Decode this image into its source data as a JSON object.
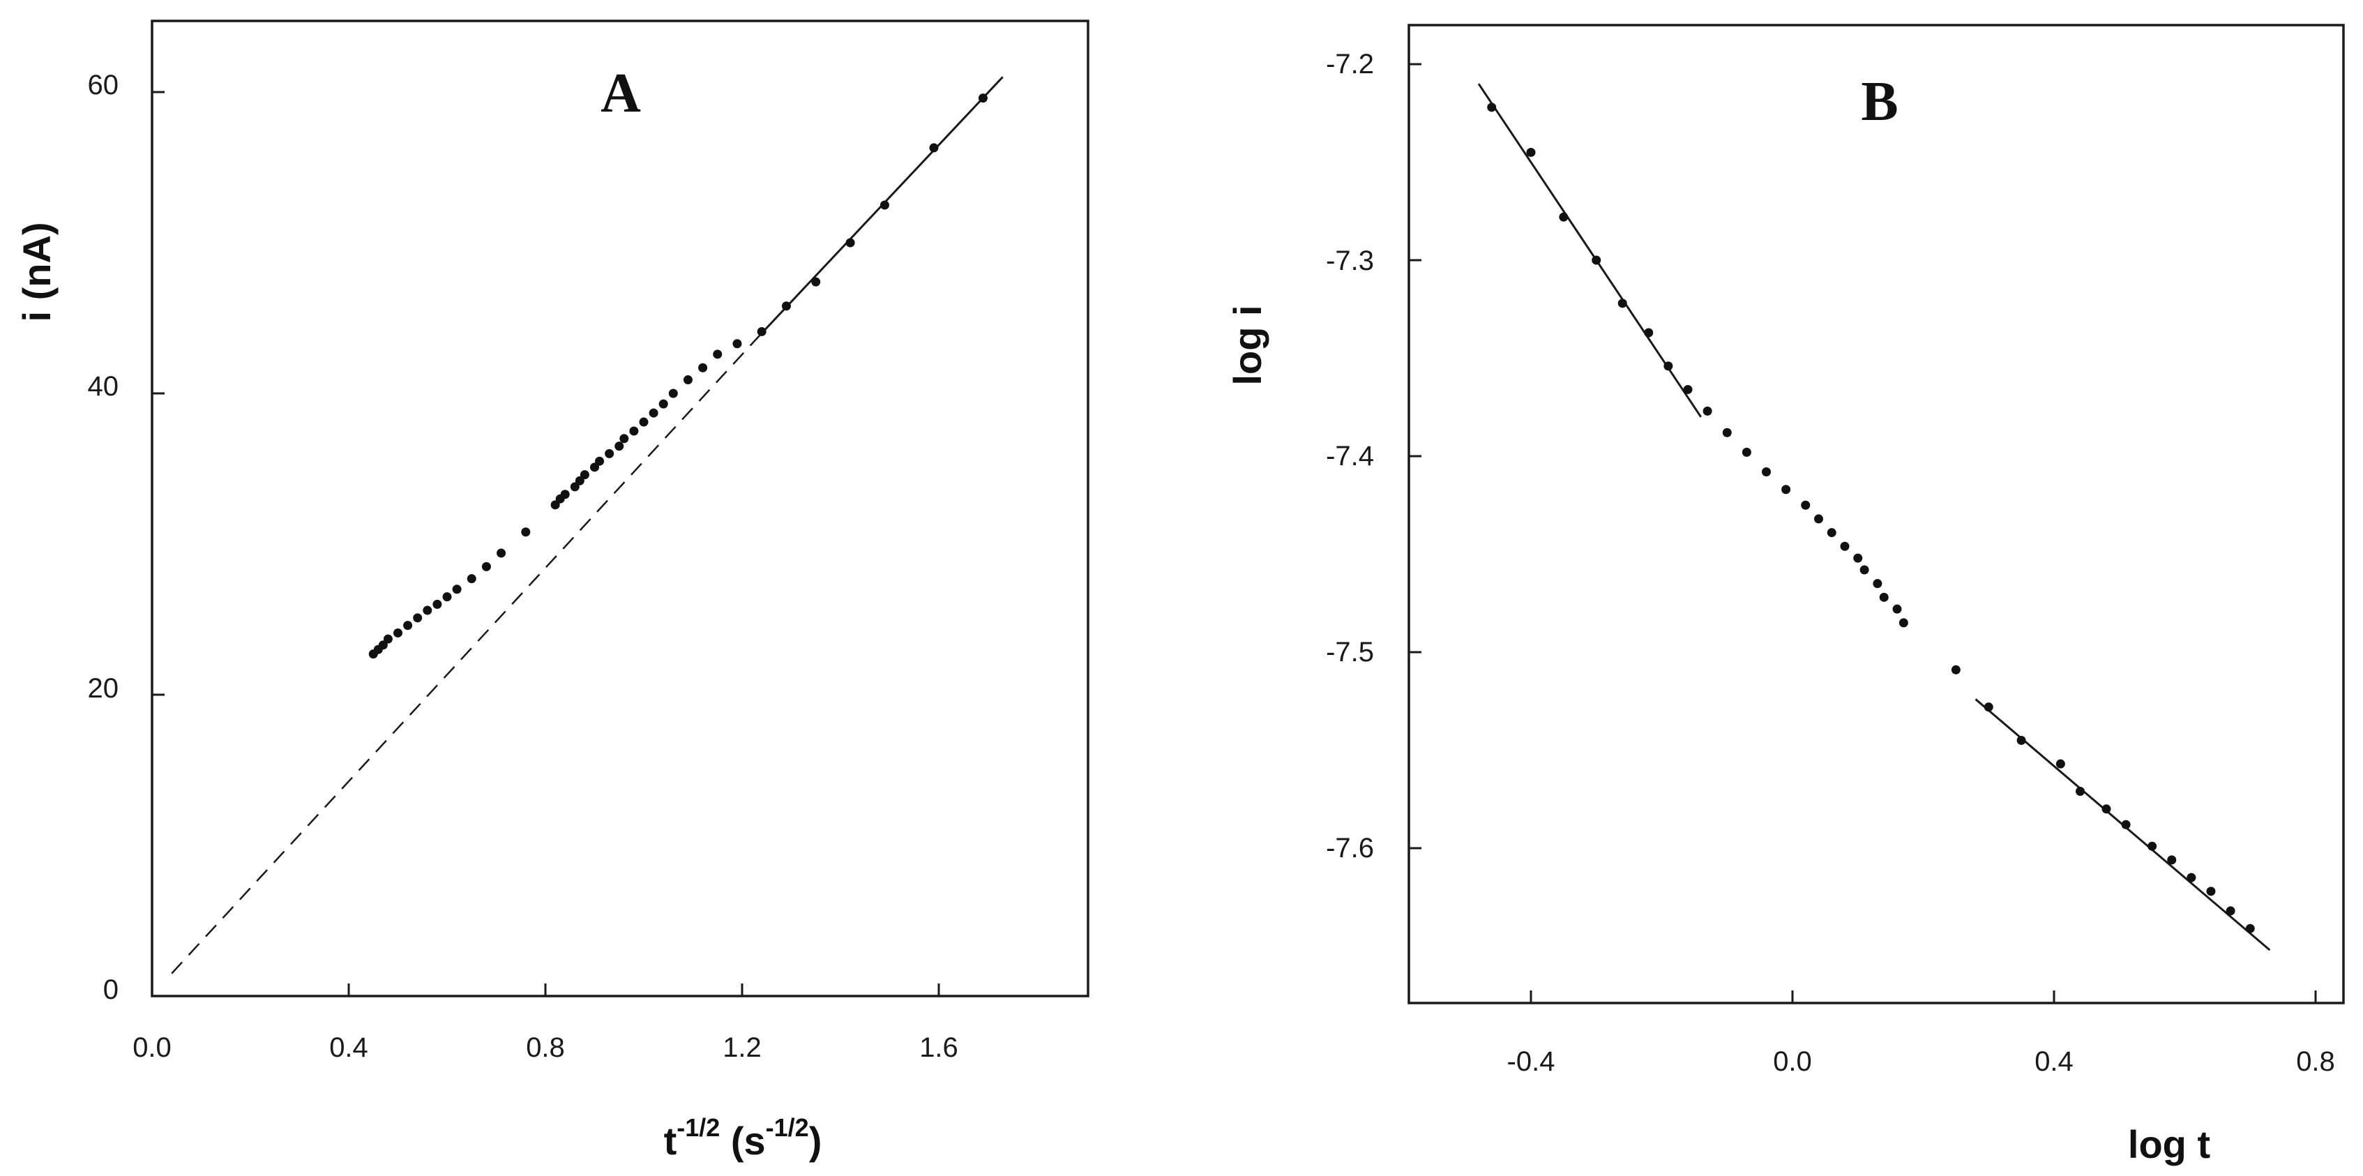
{
  "chart_data": [
    {
      "type": "scatter",
      "panel_label": "A",
      "xlabel": {
        "base": "t",
        "base_sup": "-1/2",
        "unit_open": " (s",
        "unit_sup": "-1/2",
        "unit_close": ")"
      },
      "ylabel": "i (nA)",
      "xlim": [
        0.0,
        1.9
      ],
      "ylim": [
        0,
        60
      ],
      "x_ticks": [
        0.0,
        0.4,
        0.8,
        1.2,
        1.6
      ],
      "x_tick_labels": [
        "0.0",
        "0.4",
        "0.8",
        "1.2",
        "1.6"
      ],
      "y_ticks": [
        0,
        20,
        40,
        60
      ],
      "y_tick_labels": [
        "0",
        "20",
        "40",
        "60"
      ],
      "grid": false,
      "series": [
        {
          "x": [
            0.45,
            0.46,
            0.47,
            0.48,
            0.5,
            0.52,
            0.54,
            0.56,
            0.58,
            0.6,
            0.62,
            0.65,
            0.68,
            0.71,
            0.76,
            0.82,
            0.83,
            0.84,
            0.86,
            0.87,
            0.88,
            0.9,
            0.91,
            0.93,
            0.95,
            0.96,
            0.98,
            1.0,
            1.02,
            1.04,
            1.06,
            1.09,
            1.12,
            1.15,
            1.19,
            1.24,
            1.29,
            1.35,
            1.42,
            1.49,
            1.59,
            1.69
          ],
          "y": [
            22.7,
            23.0,
            23.3,
            23.7,
            24.1,
            24.6,
            25.1,
            25.6,
            26.0,
            26.5,
            27.0,
            27.7,
            28.5,
            29.4,
            30.8,
            32.6,
            33.0,
            33.3,
            33.8,
            34.2,
            34.6,
            35.1,
            35.5,
            36.0,
            36.5,
            37.0,
            37.5,
            38.1,
            38.7,
            39.3,
            40.0,
            40.9,
            41.7,
            42.6,
            43.3,
            44.1,
            45.8,
            47.4,
            50.0,
            52.5,
            56.3,
            59.6
          ]
        }
      ],
      "lines": [
        {
          "style": "solid",
          "x": [
            1.24,
            1.73
          ],
          "y": [
            44.0,
            61.0
          ]
        },
        {
          "style": "dashed",
          "x": [
            0.04,
            1.24
          ],
          "y": [
            1.5,
            44.0
          ]
        }
      ]
    },
    {
      "type": "scatter",
      "panel_label": "B",
      "xlabel": "log t",
      "ylabel": "log i",
      "xlim": [
        -0.6,
        0.82
      ],
      "ylim": [
        -7.68,
        -7.18
      ],
      "x_ticks": [
        -0.4,
        0.0,
        0.4,
        0.8
      ],
      "x_tick_labels": [
        "-0.4",
        "0.0",
        "0.4",
        "0.8"
      ],
      "y_ticks": [
        -7.2,
        -7.3,
        -7.4,
        -7.5,
        -7.6
      ],
      "y_tick_labels": [
        "-7.2",
        "-7.3",
        "-7.4",
        "-7.5",
        "-7.6"
      ],
      "grid": false,
      "series": [
        {
          "x": [
            -0.46,
            -0.4,
            -0.35,
            -0.3,
            -0.26,
            -0.22,
            -0.19,
            -0.16,
            -0.13,
            -0.1,
            -0.07,
            -0.04,
            -0.01,
            0.02,
            0.04,
            0.06,
            0.08,
            0.1,
            0.11,
            0.13,
            0.14,
            0.16,
            0.17,
            0.25,
            0.3,
            0.35,
            0.41,
            0.44,
            0.48,
            0.51,
            0.55,
            0.58,
            0.61,
            0.64,
            0.67,
            0.7
          ],
          "y": [
            -7.222,
            -7.245,
            -7.278,
            -7.3,
            -7.322,
            -7.337,
            -7.354,
            -7.366,
            -7.377,
            -7.388,
            -7.398,
            -7.408,
            -7.417,
            -7.425,
            -7.432,
            -7.439,
            -7.446,
            -7.452,
            -7.458,
            -7.465,
            -7.472,
            -7.478,
            -7.485,
            -7.509,
            -7.528,
            -7.545,
            -7.557,
            -7.571,
            -7.58,
            -7.588,
            -7.599,
            -7.606,
            -7.615,
            -7.622,
            -7.632,
            -7.641
          ]
        }
      ],
      "lines": [
        {
          "style": "solid",
          "x": [
            -0.48,
            -0.14
          ],
          "y": [
            -7.21,
            -7.38
          ]
        },
        {
          "style": "solid",
          "x": [
            0.28,
            0.73
          ],
          "y": [
            -7.524,
            -7.652
          ]
        }
      ]
    }
  ]
}
